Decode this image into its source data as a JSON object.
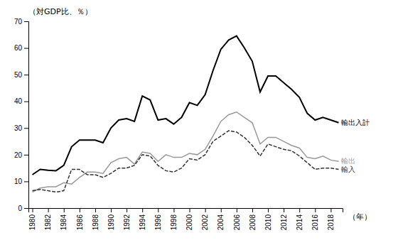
{
  "chart_data": {
    "type": "line",
    "x_label": "（年）",
    "y_label": "（対GDP比、％）",
    "x": [
      1980,
      1981,
      1982,
      1983,
      1984,
      1985,
      1986,
      1987,
      1988,
      1989,
      1990,
      1991,
      1992,
      1993,
      1994,
      1995,
      1996,
      1997,
      1998,
      1999,
      2000,
      2001,
      2002,
      2003,
      2004,
      2005,
      2006,
      2007,
      2008,
      2009,
      2010,
      2011,
      2012,
      2013,
      2014,
      2015,
      2016,
      2017,
      2018,
      2019
    ],
    "series": [
      {
        "name": "輸出入計",
        "color": "#000000",
        "line_style": "solid",
        "values": [
          12.5,
          14.5,
          14.2,
          14.0,
          16.0,
          23.0,
          25.5,
          25.5,
          25.5,
          24.5,
          30.0,
          33.0,
          33.5,
          32.5,
          42.0,
          40.5,
          33.0,
          33.5,
          31.5,
          34.0,
          39.5,
          38.5,
          42.5,
          51.5,
          59.5,
          63.0,
          64.5,
          60.0,
          55.0,
          43.5,
          49.5,
          49.5,
          47.0,
          44.5,
          41.5,
          35.5,
          33.0,
          34.0,
          33.0,
          32.0
        ]
      },
      {
        "name": "輸出",
        "color": "#999999",
        "line_style": "solid",
        "values": [
          6.0,
          7.5,
          8.0,
          8.0,
          9.5,
          9.0,
          11.5,
          13.5,
          13.5,
          13.0,
          17.0,
          18.5,
          19.0,
          16.5,
          21.0,
          20.5,
          17.5,
          20.0,
          19.0,
          19.0,
          20.5,
          20.0,
          22.0,
          27.0,
          32.5,
          35.0,
          36.0,
          34.0,
          32.0,
          24.0,
          26.5,
          26.5,
          25.0,
          23.5,
          22.5,
          19.0,
          18.5,
          19.5,
          18.0,
          17.5
        ]
      },
      {
        "name": "輸入",
        "color": "#333333",
        "line_style": "dashed",
        "values": [
          6.5,
          7.0,
          6.5,
          6.0,
          6.5,
          14.5,
          14.5,
          12.5,
          12.5,
          11.5,
          13.0,
          15.0,
          15.0,
          16.0,
          20.0,
          19.5,
          16.0,
          14.0,
          13.5,
          15.0,
          18.5,
          18.0,
          20.0,
          25.0,
          27.0,
          29.0,
          28.5,
          26.5,
          23.5,
          19.5,
          24.0,
          23.0,
          22.0,
          21.5,
          19.5,
          17.0,
          14.5,
          15.0,
          15.0,
          14.5
        ]
      }
    ],
    "xlim": [
      1979.5,
      2019.5
    ],
    "ylim": [
      0,
      70
    ],
    "xticks": [
      1980,
      1982,
      1984,
      1986,
      1988,
      1990,
      1992,
      1994,
      1996,
      1998,
      2000,
      2002,
      2004,
      2006,
      2008,
      2010,
      2012,
      2014,
      2016,
      2018
    ],
    "yticks": [
      0,
      10,
      20,
      30,
      40,
      50,
      60,
      70
    ],
    "grid": false
  }
}
